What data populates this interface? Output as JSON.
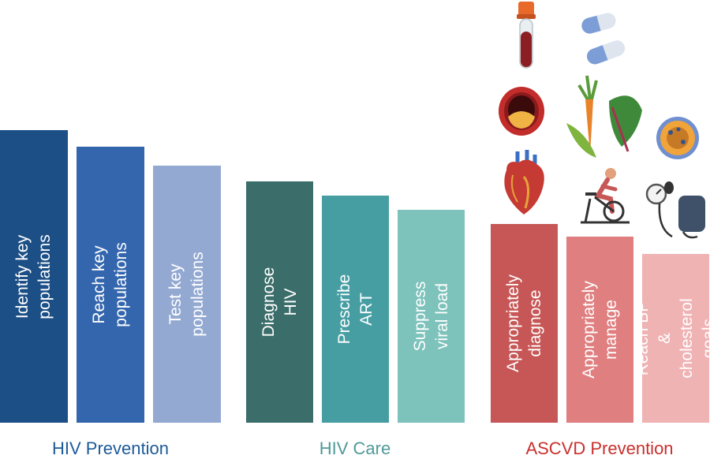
{
  "colors": {
    "prevention": "#1d5a99",
    "care": "#4f9a98",
    "ascvd": "#c9302c"
  },
  "groups": [
    {
      "label": "HIV Prevention",
      "color": "#1d5a99",
      "bars": [
        {
          "label": "Identify key populations",
          "color": "#1c4f86"
        },
        {
          "label": "Reach key populations",
          "color": "#3466ae"
        },
        {
          "label": "Test key populations",
          "color": "#93a9d2"
        }
      ]
    },
    {
      "label": "HIV Care",
      "color": "#4f9a98",
      "bars": [
        {
          "label": "Diagnose HIV",
          "color": "#3b6e6a"
        },
        {
          "label": "Prescribe ART",
          "color": "#469ea3"
        },
        {
          "label": "Suppress viral load",
          "color": "#7dc2bb"
        }
      ]
    },
    {
      "label": "ASCVD Prevention",
      "color": "#c9302c",
      "bars": [
        {
          "label": "Appropriately\ndiagnose",
          "color": "#c65756"
        },
        {
          "label": "Appropriately\nmanage",
          "color": "#e07f80"
        },
        {
          "label": "Reach BP &\ncholesterol goals",
          "color": "#f0b3b4"
        }
      ]
    }
  ],
  "icons": [
    "blood-tube-icon",
    "pills-icon",
    "artery-plaque-icon",
    "vegetables-icon",
    "lipoprotein-icon",
    "heart-icon",
    "exercise-bike-icon",
    "blood-pressure-cuff-icon"
  ]
}
